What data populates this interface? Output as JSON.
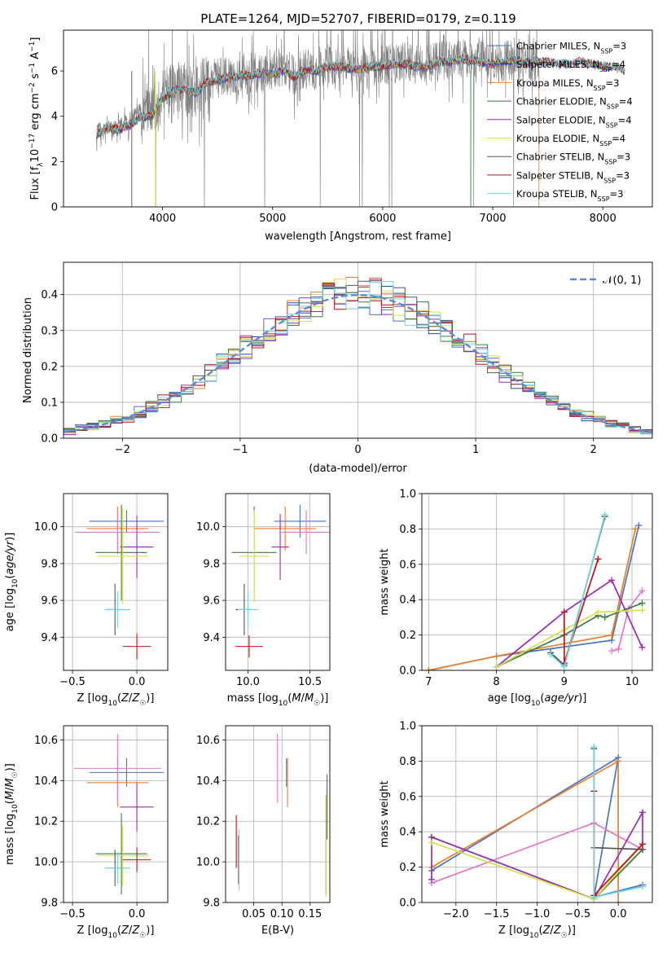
{
  "figure": {
    "title": "PLATE=1264, MJD=52707, FIBERID=0179, z=0.119"
  },
  "models": [
    {
      "label": "Chabrier MILES, N_SSP=3",
      "imf": "Chabrier",
      "lib": "MILES",
      "nssp": 3,
      "color": "#4c72c4"
    },
    {
      "label": "Salpeter MILES, N_SSP=4",
      "imf": "Salpeter",
      "lib": "MILES",
      "nssp": 4,
      "color": "#1f4aa8"
    },
    {
      "label": "Kroupa MILES, N_SSP=3",
      "imf": "Kroupa",
      "lib": "MILES",
      "nssp": 3,
      "color": "#e8802a"
    },
    {
      "label": "Chabrier ELODIE, N_SSP=4",
      "imf": "Chabrier",
      "lib": "ELODIE",
      "nssp": 4,
      "color": "#3d7a3d"
    },
    {
      "label": "Salpeter ELODIE, N_SSP=4",
      "imf": "Salpeter",
      "lib": "ELODIE",
      "nssp": 4,
      "color": "#9a2ab0"
    },
    {
      "label": "Kroupa ELODIE, N_SSP=4",
      "imf": "Kroupa",
      "lib": "ELODIE",
      "nssp": 4,
      "color": "#d4e050"
    },
    {
      "label": "Chabrier STELIB, N_SSP=3",
      "imf": "Chabrier",
      "lib": "STELIB",
      "nssp": 3,
      "color": "#555555"
    },
    {
      "label": "Salpeter STELIB, N_SSP=3",
      "imf": "Salpeter",
      "lib": "STELIB",
      "nssp": 3,
      "color": "#b81414"
    },
    {
      "label": "Kroupa STELIB, N_SSP=3",
      "imf": "Kroupa",
      "lib": "STELIB",
      "nssp": 3,
      "color": "#6fd6de"
    }
  ],
  "chart_data": [
    {
      "id": "spectrum",
      "type": "line",
      "xlabel": "wavelength [Angstrom, rest frame]",
      "ylabel": "Flux [f_λ 10^-17 erg cm^-2 s^-1 A^-1]",
      "xlim": [
        3100,
        8450
      ],
      "ylim": [
        0,
        7.8
      ],
      "xticks": [
        4000,
        5000,
        6000,
        7000,
        8000
      ],
      "yticks": [
        0,
        2,
        4,
        6
      ],
      "legend": "right",
      "series": [
        {
          "name": "data",
          "color": "#808080",
          "x": [
            3400,
            3500,
            3600,
            3700,
            3800,
            3900,
            4000,
            4100,
            4200,
            4300,
            4400,
            4500,
            4600,
            4700,
            4800,
            4900,
            5000,
            5100,
            5200,
            5300,
            5400,
            5500,
            5600,
            5700,
            5800,
            5900,
            6000,
            6100,
            6200,
            6300,
            6400,
            6500,
            6600,
            6700,
            6800,
            6900,
            7000,
            7100,
            7200,
            7300,
            7400
          ],
          "y": [
            3.3,
            3.4,
            3.5,
            3.8,
            4.2,
            4.1,
            4.9,
            5.2,
            5.3,
            5.1,
            5.6,
            5.7,
            5.8,
            5.8,
            5.9,
            5.9,
            6.0,
            6.1,
            5.8,
            6.1,
            6.1,
            6.3,
            6.3,
            6.2,
            6.2,
            6.2,
            6.3,
            6.3,
            6.4,
            6.3,
            6.3,
            6.4,
            6.5,
            6.5,
            6.6,
            6.5,
            6.3,
            6.4,
            6.6,
            6.4,
            6.5
          ]
        },
        {
          "name": "model",
          "color": "#6fd6de",
          "x": [
            3400,
            3500,
            3600,
            3700,
            3800,
            3900,
            4000,
            4100,
            4200,
            4300,
            4400,
            4500,
            4600,
            4700,
            4800,
            4900,
            5000,
            5100,
            5200,
            5300,
            5400,
            5500,
            5600,
            5700,
            5800,
            5900,
            6000,
            6100,
            6200,
            6300,
            6400,
            6500,
            6600,
            6700,
            6800,
            6900,
            7000,
            7100,
            7200,
            7300,
            7400,
            7500,
            7600,
            7700,
            7800,
            7900,
            8000,
            8100,
            8200
          ],
          "y": [
            3.2,
            3.5,
            3.4,
            3.6,
            4.0,
            4.0,
            4.8,
            5.1,
            5.2,
            5.0,
            5.5,
            5.6,
            5.7,
            5.8,
            5.8,
            5.9,
            5.9,
            6.0,
            5.7,
            6.1,
            6.0,
            6.2,
            6.2,
            6.1,
            6.1,
            6.2,
            6.2,
            6.3,
            6.3,
            6.2,
            6.2,
            6.4,
            6.4,
            6.5,
            6.5,
            6.4,
            6.3,
            6.4,
            6.5,
            6.4,
            6.4,
            6.4,
            6.3,
            6.3,
            6.4,
            6.3,
            6.2,
            6.2,
            6.0
          ]
        }
      ]
    },
    {
      "id": "residuals",
      "type": "bar",
      "xlabel": "(data-model)/error",
      "ylabel": "Normed distribution",
      "xlim": [
        -2.5,
        2.5
      ],
      "ylim": [
        0,
        0.49
      ],
      "xticks": [
        -2,
        -1,
        0,
        1,
        2
      ],
      "yticks": [
        0.0,
        0.1,
        0.2,
        0.3,
        0.4
      ],
      "legend": "top-right",
      "gaussian_label": "𝒩(0, 1)",
      "gaussian_color": "#5b8bd8"
    },
    {
      "id": "age_vs_Z",
      "type": "scatter",
      "xlabel": "Z [log10(Z/Z☉)]",
      "ylabel": "age  [log10(age/yr)]",
      "xlim": [
        -0.57,
        0.24
      ],
      "ylim": [
        9.22,
        10.18
      ],
      "xticks": [
        -0.5,
        0.0
      ],
      "yticks": [
        9.4,
        9.6,
        9.8,
        10.0
      ],
      "points": [
        {
          "x": -0.08,
          "y": 10.03,
          "xerr": 0.29,
          "yerr": 0.06,
          "color": "#4c72c4"
        },
        {
          "x": -0.15,
          "y": 9.99,
          "xerr": 0.24,
          "yerr": 0.12,
          "color": "#e8802a"
        },
        {
          "x": -0.15,
          "y": 9.97,
          "xerr": 0.33,
          "yerr": 0.12,
          "color": "#e377c2"
        },
        {
          "x": -0.12,
          "y": 9.86,
          "xerr": 0.2,
          "yerr": 0.26,
          "color": "#3d7a3d"
        },
        {
          "x": 0.0,
          "y": 9.89,
          "xerr": 0.13,
          "yerr": 0.17,
          "color": "#9a2ab0"
        },
        {
          "x": -0.11,
          "y": 9.84,
          "xerr": 0.2,
          "yerr": 0.26,
          "color": "#d4e050"
        },
        {
          "x": -0.17,
          "y": 9.55,
          "xerr": 0.07,
          "yerr": 0.14,
          "color": "#555555"
        },
        {
          "x": 0.0,
          "y": 9.35,
          "xerr": 0.11,
          "yerr": 0.07,
          "color": "#b81414"
        },
        {
          "x": -0.15,
          "y": 9.55,
          "xerr": 0.1,
          "yerr": 0.1,
          "color": "#6fd6de"
        }
      ]
    },
    {
      "id": "age_vs_mass",
      "type": "scatter",
      "xlabel": "mass [log10(M/M☉)]",
      "ylabel": "",
      "xlim": [
        9.82,
        10.66
      ],
      "ylim": [
        9.22,
        10.18
      ],
      "xticks": [
        10.0,
        10.5
      ],
      "yticks": [
        9.4,
        9.6,
        9.8,
        10.0
      ],
      "points": [
        {
          "x": 10.42,
          "y": 10.03,
          "xerr": 0.21,
          "yerr": 0.09,
          "color": "#4c72c4"
        },
        {
          "x": 10.3,
          "y": 9.99,
          "xerr": 0.25,
          "yerr": 0.12,
          "color": "#e8802a"
        },
        {
          "x": 10.47,
          "y": 9.97,
          "xerr": 0.2,
          "yerr": 0.12,
          "color": "#e377c2"
        },
        {
          "x": 10.05,
          "y": 9.86,
          "xerr": 0.18,
          "yerr": 0.25,
          "color": "#3d7a3d"
        },
        {
          "x": 10.26,
          "y": 9.89,
          "xerr": 0.07,
          "yerr": 0.18,
          "color": "#9a2ab0"
        },
        {
          "x": 10.05,
          "y": 9.84,
          "xerr": 0.12,
          "yerr": 0.25,
          "color": "#d4e050"
        },
        {
          "x": 9.97,
          "y": 9.55,
          "xerr": 0.07,
          "yerr": 0.14,
          "color": "#555555"
        },
        {
          "x": 10.01,
          "y": 9.35,
          "xerr": 0.11,
          "yerr": 0.06,
          "color": "#b81414"
        },
        {
          "x": 10.0,
          "y": 9.55,
          "xerr": 0.08,
          "yerr": 0.1,
          "color": "#6fd6de"
        }
      ]
    },
    {
      "id": "mass_weight_vs_age",
      "type": "line",
      "xlabel": "age  [log10(age/yr)]",
      "ylabel": "mass weight",
      "xlim": [
        6.9,
        10.3
      ],
      "ylim": [
        0,
        1
      ],
      "xticks": [
        7,
        8,
        9,
        10
      ],
      "yticks": [
        0.0,
        0.2,
        0.4,
        0.6,
        0.8,
        1.0
      ],
      "series": [
        {
          "color": "#4c72c4",
          "x": [
            7.0,
            8.0,
            9.7,
            10.1
          ],
          "y": [
            0.0,
            0.08,
            0.17,
            0.82
          ]
        },
        {
          "color": "#e8802a",
          "x": [
            7.0,
            8.0,
            9.7,
            10.05
          ],
          "y": [
            0.0,
            0.08,
            0.2,
            0.8
          ]
        },
        {
          "color": "#e377c2",
          "x": [
            9.7,
            9.8,
            9.95,
            10.15
          ],
          "y": [
            0.11,
            0.12,
            0.35,
            0.45
          ]
        },
        {
          "color": "#3d7a3d",
          "x": [
            8.0,
            9.0,
            9.5,
            9.6,
            10.15
          ],
          "y": [
            0.02,
            0.2,
            0.31,
            0.3,
            0.38
          ]
        },
        {
          "color": "#9a2ab0",
          "x": [
            8.0,
            9.0,
            9.7,
            10.15
          ],
          "y": [
            0.02,
            0.33,
            0.51,
            0.13
          ]
        },
        {
          "color": "#d4e050",
          "x": [
            8.0,
            9.0,
            9.5,
            10.15
          ],
          "y": [
            0.02,
            0.23,
            0.33,
            0.34
          ]
        },
        {
          "color": "#555555",
          "x": [
            8.8,
            9.0,
            9.6
          ],
          "y": [
            0.1,
            0.03,
            0.87
          ]
        },
        {
          "color": "#b81414",
          "x": [
            9.0,
            9.0,
            9.5
          ],
          "y": [
            0.33,
            0.04,
            0.63
          ]
        },
        {
          "color": "#6fd6de",
          "x": [
            8.8,
            9.0,
            9.6
          ],
          "y": [
            0.09,
            0.02,
            0.88
          ]
        }
      ]
    },
    {
      "id": "mass_vs_Z",
      "type": "scatter",
      "xlabel": "Z [log10(Z/Z☉)]",
      "ylabel": "mass [log10(M/M☉)]",
      "xlim": [
        -0.57,
        0.24
      ],
      "ylim": [
        9.8,
        10.67
      ],
      "xticks": [
        -0.5,
        0.0
      ],
      "yticks": [
        9.8,
        10.0,
        10.2,
        10.4,
        10.6
      ],
      "points": [
        {
          "x": -0.08,
          "y": 10.44,
          "xerr": 0.29,
          "yerr": 0.07,
          "color": "#4c72c4"
        },
        {
          "x": -0.15,
          "y": 10.39,
          "xerr": 0.24,
          "yerr": 0.12,
          "color": "#e8802a"
        },
        {
          "x": -0.15,
          "y": 10.46,
          "xerr": 0.34,
          "yerr": 0.17,
          "color": "#e377c2"
        },
        {
          "x": -0.12,
          "y": 10.04,
          "xerr": 0.2,
          "yerr": 0.2,
          "color": "#3d7a3d"
        },
        {
          "x": 0.0,
          "y": 10.27,
          "xerr": 0.13,
          "yerr": 0.12,
          "color": "#9a2ab0"
        },
        {
          "x": -0.11,
          "y": 10.03,
          "xerr": 0.2,
          "yerr": 0.15,
          "color": "#d4e050"
        },
        {
          "x": -0.17,
          "y": 9.97,
          "xerr": 0.08,
          "yerr": 0.09,
          "color": "#555555"
        },
        {
          "x": 0.0,
          "y": 10.01,
          "xerr": 0.11,
          "yerr": 0.06,
          "color": "#b81414"
        },
        {
          "x": -0.15,
          "y": 9.97,
          "xerr": 0.1,
          "yerr": 0.08,
          "color": "#6fd6de"
        }
      ]
    },
    {
      "id": "mass_vs_EBV",
      "type": "scatter",
      "xlabel": "E(B-V)",
      "ylabel": "",
      "xlim": [
        0.0,
        0.185
      ],
      "ylim": [
        9.8,
        10.67
      ],
      "xticks": [
        0.05,
        0.1,
        0.15
      ],
      "yticks": [
        9.8,
        10.0,
        10.2,
        10.4,
        10.6
      ],
      "points": [
        {
          "x": 0.108,
          "y": 10.44,
          "yerr": 0.07,
          "color": "#4c72c4"
        },
        {
          "x": 0.11,
          "y": 10.39,
          "yerr": 0.12,
          "color": "#e8802a"
        },
        {
          "x": 0.092,
          "y": 10.46,
          "yerr": 0.17,
          "color": "#e377c2"
        },
        {
          "x": 0.178,
          "y": 10.08,
          "yerr": 0.25,
          "color": "#3d7a3d"
        },
        {
          "x": 0.18,
          "y": 10.27,
          "yerr": 0.16,
          "color": "#9a2ab0"
        },
        {
          "x": 0.178,
          "y": 10.08,
          "yerr": 0.25,
          "color": "#d4e050"
        },
        {
          "x": 0.023,
          "y": 10.01,
          "yerr": 0.12,
          "color": "#555555"
        },
        {
          "x": 0.019,
          "y": 10.1,
          "yerr": 0.13,
          "color": "#b81414"
        },
        {
          "x": 0.024,
          "y": 10.01,
          "yerr": 0.15,
          "color": "#6fd6de"
        }
      ]
    },
    {
      "id": "mass_weight_vs_Z",
      "type": "line",
      "xlabel": "Z [log10(Z/Z☉)]",
      "ylabel": "mass weight",
      "xlim": [
        -2.42,
        0.42
      ],
      "ylim": [
        0,
        1
      ],
      "xticks": [
        -2.0,
        -1.5,
        -1.0,
        -0.5,
        0.0
      ],
      "yticks": [
        0.0,
        0.2,
        0.4,
        0.6,
        0.8,
        1.0
      ],
      "series": [
        {
          "color": "#4c72c4",
          "x": [
            -2.3,
            0.0,
            -0.3,
            0.3
          ],
          "y": [
            0.18,
            0.82,
            0.03,
            0.1
          ]
        },
        {
          "color": "#e8802a",
          "x": [
            -2.3,
            0.0,
            0.0
          ],
          "y": [
            0.2,
            0.8,
            0.0
          ]
        },
        {
          "color": "#e377c2",
          "x": [
            -2.3,
            -0.3,
            0.3
          ],
          "y": [
            0.11,
            0.45,
            0.3
          ]
        },
        {
          "color": "#3d7a3d",
          "x": [
            -2.3,
            -0.3,
            0.3
          ],
          "y": [
            0.37,
            0.02,
            0.3
          ]
        },
        {
          "color": "#9a2ab0",
          "x": [
            -2.3,
            -2.3,
            -0.3,
            0.3,
            0.3
          ],
          "y": [
            0.13,
            0.37,
            0.02,
            0.51,
            0.33
          ]
        },
        {
          "color": "#d4e050",
          "x": [
            -2.3,
            -0.3,
            0.3
          ],
          "y": [
            0.34,
            0.02,
            0.33
          ]
        },
        {
          "color": "#555555",
          "x": [
            -0.3,
            -0.3,
            0.3
          ],
          "y": [
            0.87,
            0.31,
            0.3
          ]
        },
        {
          "color": "#b81414",
          "x": [
            -0.3,
            -0.3,
            0.3
          ],
          "y": [
            0.63,
            0.04,
            0.33
          ]
        },
        {
          "color": "#6fd6de",
          "x": [
            -0.3,
            -0.3,
            0.3
          ],
          "y": [
            0.88,
            0.03,
            0.09
          ]
        }
      ]
    }
  ]
}
